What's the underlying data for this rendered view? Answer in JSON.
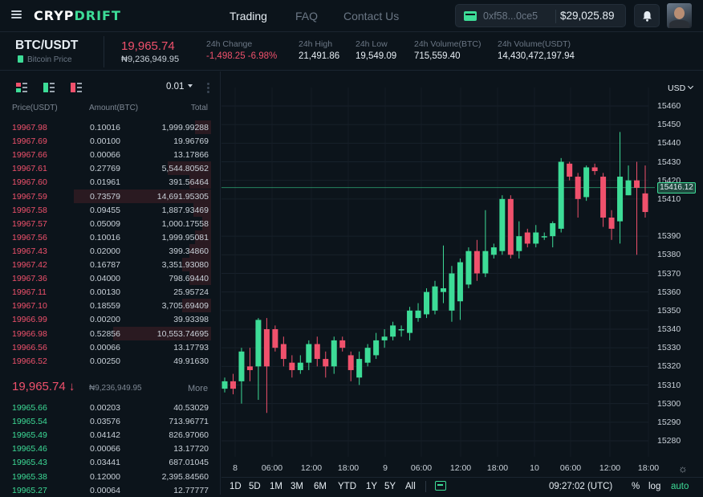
{
  "header": {
    "logo_a": "CRYP",
    "logo_b": "DRIFT",
    "nav": [
      "Trading",
      "FAQ",
      "Contact Us"
    ],
    "wallet_address": "0xf58...0ce5",
    "wallet_balance": "$29,025.89"
  },
  "ticker": {
    "pair": "BTC/USDT",
    "subtitle": "Bitcoin Price",
    "last_price": "19,965.74",
    "last_price_ngn": "₦9,236,949.95",
    "stats": [
      {
        "label": "24h Change",
        "value": "-1,498.25 -6.98%",
        "color": "red"
      },
      {
        "label": "24h High",
        "value": "21,491.86"
      },
      {
        "label": "24h Low",
        "value": "19,549.09"
      },
      {
        "label": "24h Volume(BTC)",
        "value": "715,559.40"
      },
      {
        "label": "24h Volume(USDT)",
        "value": "14,430,472,197.94"
      }
    ]
  },
  "orderbook": {
    "tick_size": "0.01",
    "headers": [
      "Price(USDT)",
      "Amount(BTC)",
      "Total"
    ],
    "asks": [
      {
        "p": "19967.98",
        "a": "0.10016",
        "t": "1,999.99288",
        "d": 0.11
      },
      {
        "p": "19967.69",
        "a": "0.00100",
        "t": "19.96769",
        "d": 0.0
      },
      {
        "p": "19967.66",
        "a": "0.00066",
        "t": "13.17866",
        "d": 0.0
      },
      {
        "p": "19967.61",
        "a": "0.27769",
        "t": "5,544.80562",
        "d": 0.3
      },
      {
        "p": "19967.60",
        "a": "0.01961",
        "t": "391.56464",
        "d": 0.15
      },
      {
        "p": "19967.59",
        "a": "0.73579",
        "t": "14,691.95305",
        "d": 0.95
      },
      {
        "p": "19967.58",
        "a": "0.09455",
        "t": "1,887.93469",
        "d": 0.12
      },
      {
        "p": "19967.57",
        "a": "0.05009",
        "t": "1,000.17558",
        "d": 0.06
      },
      {
        "p": "19967.56",
        "a": "0.10016",
        "t": "1,999.95081",
        "d": 0.11
      },
      {
        "p": "19967.43",
        "a": "0.02000",
        "t": "399.34860",
        "d": 0.15
      },
      {
        "p": "19967.42",
        "a": "0.16787",
        "t": "3,351.93080",
        "d": 0.2
      },
      {
        "p": "19967.36",
        "a": "0.04000",
        "t": "798.69440",
        "d": 0.15
      },
      {
        "p": "19967.11",
        "a": "0.00130",
        "t": "25.95724",
        "d": 0.0
      },
      {
        "p": "19967.10",
        "a": "0.18559",
        "t": "3,705.69409",
        "d": 0.2
      },
      {
        "p": "19966.99",
        "a": "0.00200",
        "t": "39.93398",
        "d": 0.0
      },
      {
        "p": "19966.98",
        "a": "0.52856",
        "t": "10,553.74695",
        "d": 0.68
      },
      {
        "p": "19966.56",
        "a": "0.00066",
        "t": "13.17793",
        "d": 0.0
      },
      {
        "p": "19966.52",
        "a": "0.00250",
        "t": "49.91630",
        "d": 0.0
      }
    ],
    "mid_price": "19,965.74 ↓",
    "mid_price_ngn": "₦9,236,949.95",
    "more": "More",
    "bids": [
      {
        "p": "19965.66",
        "a": "0.00203",
        "t": "40.53029",
        "d": 0.0
      },
      {
        "p": "19965.54",
        "a": "0.03576",
        "t": "713.96771",
        "d": 0.0
      },
      {
        "p": "19965.49",
        "a": "0.04142",
        "t": "826.97060",
        "d": 0.0
      },
      {
        "p": "19965.46",
        "a": "0.00066",
        "t": "13.17720",
        "d": 0.0
      },
      {
        "p": "19965.43",
        "a": "0.03441",
        "t": "687.01045",
        "d": 0.0
      },
      {
        "p": "19965.38",
        "a": "0.12000",
        "t": "2,395.84560",
        "d": 0.0
      },
      {
        "p": "19965.27",
        "a": "0.00064",
        "t": "12.77777",
        "d": 0.0
      }
    ]
  },
  "chart_data": {
    "type": "candlestick",
    "currency": "USD",
    "yticks": [
      15460,
      15450,
      15440,
      15430,
      15420,
      15410,
      15390,
      15380,
      15370,
      15360,
      15350,
      15340,
      15330,
      15320,
      15310,
      15300,
      15290,
      15280
    ],
    "current_price": "15416.12",
    "current_price_value": 15416.12,
    "ylim": [
      15275,
      15465
    ],
    "xticks": [
      "8",
      "06:00",
      "12:00",
      "18:00",
      "9",
      "06:00",
      "12:00",
      "18:00",
      "10",
      "06:00",
      "12:00",
      "18:00"
    ],
    "candles": [
      [
        15308,
        15312,
        15306,
        15314
      ],
      [
        15312,
        15308,
        15305,
        15316
      ],
      [
        15312,
        15328,
        15300,
        15330
      ],
      [
        15320,
        15318,
        15312,
        15330
      ],
      [
        15320,
        15345,
        15302,
        15346
      ],
      [
        15340,
        15320,
        15295,
        15346
      ],
      [
        15340,
        15330,
        15328,
        15342
      ],
      [
        15332,
        15324,
        15320,
        15336
      ],
      [
        15322,
        15318,
        15314,
        15326
      ],
      [
        15318,
        15322,
        15316,
        15326
      ],
      [
        15322,
        15332,
        15318,
        15334
      ],
      [
        15332,
        15324,
        15320,
        15336
      ],
      [
        15324,
        15320,
        15314,
        15328
      ],
      [
        15320,
        15334,
        15316,
        15336
      ],
      [
        15334,
        15330,
        15328,
        15336
      ],
      [
        15326,
        15318,
        15312,
        15328
      ],
      [
        15314,
        15324,
        15310,
        15328
      ],
      [
        15322,
        15330,
        15320,
        15332
      ],
      [
        15326,
        15334,
        15324,
        15338
      ],
      [
        15334,
        15336,
        15330,
        15340
      ],
      [
        15336,
        15342,
        15334,
        15344
      ],
      [
        15340,
        15340,
        15336,
        15342
      ],
      [
        15338,
        15350,
        15334,
        15352
      ],
      [
        15346,
        15350,
        15344,
        15354
      ],
      [
        15348,
        15360,
        15346,
        15362
      ],
      [
        15350,
        15363,
        15348,
        15366
      ],
      [
        15360,
        15362,
        15354,
        15385
      ],
      [
        15350,
        15370,
        15344,
        15374
      ],
      [
        15355,
        15376,
        15345,
        15378
      ],
      [
        15364,
        15382,
        15362,
        15384
      ],
      [
        15382,
        15370,
        15366,
        15388
      ],
      [
        15370,
        15382,
        15368,
        15404
      ],
      [
        15380,
        15384,
        15378,
        15386
      ],
      [
        15382,
        15410,
        15380,
        15412
      ],
      [
        15410,
        15380,
        15378,
        15412
      ],
      [
        15382,
        15390,
        15378,
        15398
      ],
      [
        15392,
        15386,
        15384,
        15394
      ],
      [
        15386,
        15392,
        15384,
        15396
      ],
      [
        15390,
        15390,
        15388,
        15392
      ],
      [
        15390,
        15397,
        15384,
        15398
      ],
      [
        15394,
        15430,
        15392,
        15432
      ],
      [
        15429,
        15422,
        15420,
        15430
      ],
      [
        15422,
        15410,
        15400,
        15424
      ],
      [
        15411,
        15427,
        15409,
        15428
      ],
      [
        15427,
        15425,
        15423,
        15429
      ],
      [
        15422,
        15400,
        15395,
        15424
      ],
      [
        15400,
        15394,
        15388,
        15404
      ],
      [
        15398,
        15422,
        15386,
        15446
      ],
      [
        15412,
        15420,
        15412,
        15428
      ],
      [
        15420,
        15416,
        15380,
        15430
      ],
      [
        15413,
        15403,
        15400,
        15428
      ]
    ]
  },
  "toolbar": {
    "ranges": [
      "1D",
      "5D",
      "1M",
      "3M",
      "6M",
      "YTD",
      "1Y",
      "5Y",
      "All"
    ],
    "clock": "09:27:02 (UTC)",
    "percent": "%",
    "log": "log",
    "auto": "auto"
  },
  "colors": {
    "up": "#3ddc97",
    "down": "#f0516c",
    "background": "#0c141b"
  }
}
